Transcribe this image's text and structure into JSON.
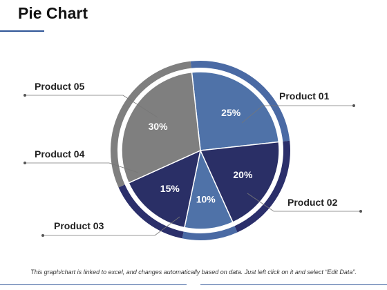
{
  "page": {
    "title": "Pie Chart",
    "footer": "This graph/chart is linked to excel, and changes automatically based on data. Just left click on it and select “Edit Data”."
  },
  "chart_data": {
    "type": "pie",
    "slices": [
      {
        "label": "Product 01",
        "value": 25,
        "value_label": "25%",
        "color": "#4f72a8",
        "ring_color": "#4a6aa4"
      },
      {
        "label": "Product 02",
        "value": 20,
        "value_label": "20%",
        "color": "#2a2f66",
        "ring_color": "#2b2f6b"
      },
      {
        "label": "Product 03",
        "value": 10,
        "value_label": "10%",
        "color": "#4f72a8",
        "ring_color": "#4a6aa4"
      },
      {
        "label": "Product 04",
        "value": 15,
        "value_label": "15%",
        "color": "#2a2f66",
        "ring_color": "#2b2f6b"
      },
      {
        "label": "Product 05",
        "value": 30,
        "value_label": "30%",
        "color": "#7f7f7f",
        "ring_color": "#7f7f7f"
      }
    ]
  }
}
